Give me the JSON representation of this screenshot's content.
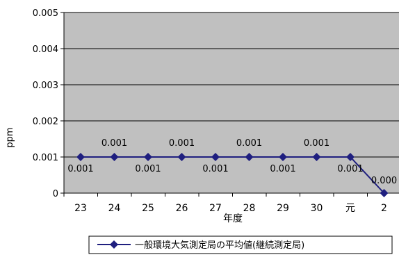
{
  "chart_data": {
    "type": "line",
    "title": "",
    "xlabel": "年度",
    "ylabel": "ppm",
    "categories": [
      "23",
      "24",
      "25",
      "26",
      "27",
      "28",
      "29",
      "30",
      "元",
      "2"
    ],
    "series": [
      {
        "name": "一般環境大気測定局の平均値(継続測定局)",
        "values": [
          0.001,
          0.001,
          0.001,
          0.001,
          0.001,
          0.001,
          0.001,
          0.001,
          0.001,
          0.0
        ],
        "data_labels": [
          "0.001",
          "0.001",
          "0.001",
          "0.001",
          "0.001",
          "0.001",
          "0.001",
          "0.001",
          "0.001",
          "0.000"
        ],
        "color": "#1F1F7F"
      }
    ],
    "ylim": [
      0,
      0.005
    ],
    "yticks": [
      0,
      0.001,
      0.002,
      0.003,
      0.004,
      0.005
    ],
    "ytick_labels": [
      "0",
      "0.001",
      "0.002",
      "0.003",
      "0.004",
      "0.005"
    ],
    "grid": true,
    "plot_background": "#C0C0C0",
    "legend_position": "bottom"
  }
}
